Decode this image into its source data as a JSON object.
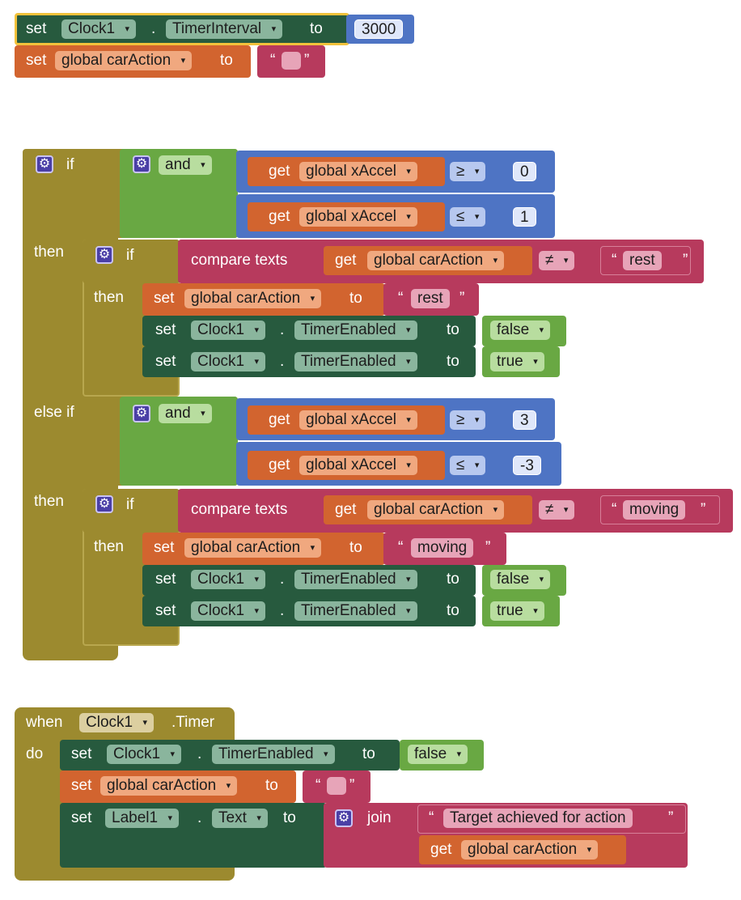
{
  "kw": {
    "set": "set",
    "to": "to",
    "dot": ".",
    "if": "if",
    "then": "then",
    "else_if": "else if",
    "and": "and",
    "get": "get",
    "compare_texts": "compare texts",
    "when": "when",
    "do": "do",
    "join": "join",
    "open_quote": "“",
    "close_quote": "”",
    "dropdown_arrow": "▾",
    "gear": "⚙"
  },
  "block1": {
    "component": "Clock1",
    "property": "TimerInterval",
    "value": "3000",
    "var": "global carAction",
    "text_value": ""
  },
  "if_block": {
    "cond1": {
      "var": "global xAccel",
      "op1": "≥",
      "val1": "0",
      "op2": "≤",
      "val2": "1"
    },
    "inner1": {
      "var": "global carAction",
      "op": "≠",
      "text": "rest",
      "set_var": "global carAction",
      "set_text": "rest",
      "comp": "Clock1",
      "prop": "TimerEnabled",
      "v1": "false",
      "v2": "true"
    },
    "cond2": {
      "var": "global xAccel",
      "op1": "≥",
      "val1": "3",
      "op2": "≤",
      "val2": "-3"
    },
    "inner2": {
      "var": "global carAction",
      "op": "≠",
      "text": "moving",
      "set_var": "global carAction",
      "set_text": "moving",
      "comp": "Clock1",
      "prop": "TimerEnabled",
      "v1": "false",
      "v2": "true"
    }
  },
  "event_block": {
    "component": "Clock1",
    "event": ".Timer",
    "comp": "Clock1",
    "prop": "TimerEnabled",
    "v1": "false",
    "var": "global carAction",
    "text_value": "",
    "label": "Label1",
    "label_prop": "Text",
    "join_text": "Target achieved for action ",
    "join_var": "global carAction"
  },
  "colors": {
    "control": "#9c8a2f",
    "component_setter": "#275a3e",
    "variable": "#d2642f",
    "math": "#4e74c4",
    "logic": "#69a843",
    "text": "#b73a5d"
  }
}
